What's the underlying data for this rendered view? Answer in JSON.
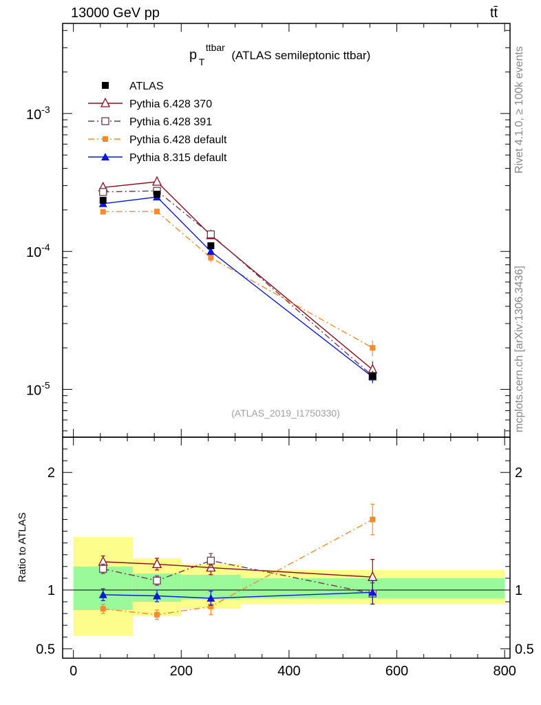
{
  "header": {
    "energy": "13000 GeV pp",
    "process": "tt̄"
  },
  "side": {
    "rivet": "Rivet 4.1.0, ≥ 100k events",
    "mcplots": "mcplots.cern.ch [arXiv:1306.3436]"
  },
  "chart_data": {
    "type": "line",
    "title": "p_T^ttbar (ATLAS semileptonic ttbar)",
    "title_main": "p",
    "title_sup": "ttbar",
    "title_sub": "T",
    "title_rest": "(ATLAS semileptonic ttbar)",
    "analysis_id": "(ATLAS_2019_I1750330)",
    "xlabel": "",
    "ylabel_ratio": "Ratio to ATLAS",
    "xlim": [
      -20,
      810
    ],
    "ylim": [
      4.5e-06,
      0.0045
    ],
    "ratio_ylim": [
      0.42,
      2.3
    ],
    "x_ticks": [
      0,
      200,
      400,
      600,
      800
    ],
    "y_ticks": [
      {
        "value": 0.001,
        "base": "10",
        "exp": "-3"
      },
      {
        "value": 0.0001,
        "base": "10",
        "exp": "-4"
      },
      {
        "value": 1e-05,
        "base": "10",
        "exp": "-5"
      }
    ],
    "ratio_ticks": [
      {
        "value": 0.5,
        "label": "0.5"
      },
      {
        "value": 1,
        "label": "1"
      },
      {
        "value": 2,
        "label": "2"
      }
    ],
    "bins": [
      [
        0,
        110
      ],
      [
        110,
        200
      ],
      [
        200,
        310
      ],
      [
        310,
        800
      ]
    ],
    "x": [
      55,
      155,
      255,
      555
    ],
    "data": {
      "name": "ATLAS",
      "values": [
        0.000235,
        0.00026,
        0.00011,
        1.25e-05
      ],
      "band_inner": [
        [
          0.83,
          1.2
        ],
        [
          0.9,
          1.14
        ],
        [
          0.92,
          1.13
        ],
        [
          0.93,
          1.1
        ]
      ],
      "band_outer": [
        [
          0.61,
          1.45
        ],
        [
          0.78,
          1.27
        ],
        [
          0.84,
          1.22
        ],
        [
          0.88,
          1.17
        ]
      ]
    },
    "series": [
      {
        "name": "Pythia 6.428 370",
        "color": "#8b0a1a",
        "dash": "",
        "marker": "open-triangle",
        "values": [
          0.000291,
          0.00032,
          0.000131,
          1.39e-05
        ],
        "ratio": [
          1.24,
          1.22,
          1.19,
          1.11
        ],
        "ratio_err": [
          0.05,
          0.05,
          0.06,
          0.15
        ]
      },
      {
        "name": "Pythia 6.428 391",
        "color": "#6b3a4a",
        "dash": "9,4,2,4",
        "marker": "open-square",
        "values": [
          0.00027,
          0.000275,
          0.000133,
          1.25e-05
        ],
        "ratio": [
          1.18,
          1.08,
          1.25,
          0.97
        ],
        "ratio_err": [
          0.04,
          0.04,
          0.06,
          0.09
        ]
      },
      {
        "name": "Pythia 6.428 default",
        "color": "#f58a31",
        "dash": "9,4,2,4",
        "marker": "filled-square",
        "values": [
          0.000194,
          0.000195,
          9e-05,
          2e-05
        ],
        "ratio": [
          0.84,
          0.79,
          0.86,
          1.6
        ],
        "ratio_err": [
          0.04,
          0.04,
          0.07,
          0.13
        ]
      },
      {
        "name": "Pythia 8.315 default",
        "color": "#0a19d6",
        "dash": "",
        "marker": "filled-triangle",
        "values": [
          0.000222,
          0.000248,
          0.0001,
          1.23e-05
        ],
        "ratio": [
          0.96,
          0.95,
          0.93,
          0.98
        ],
        "ratio_err": [
          0.05,
          0.05,
          0.06,
          0.1
        ]
      }
    ],
    "legend_position": "top-left"
  }
}
